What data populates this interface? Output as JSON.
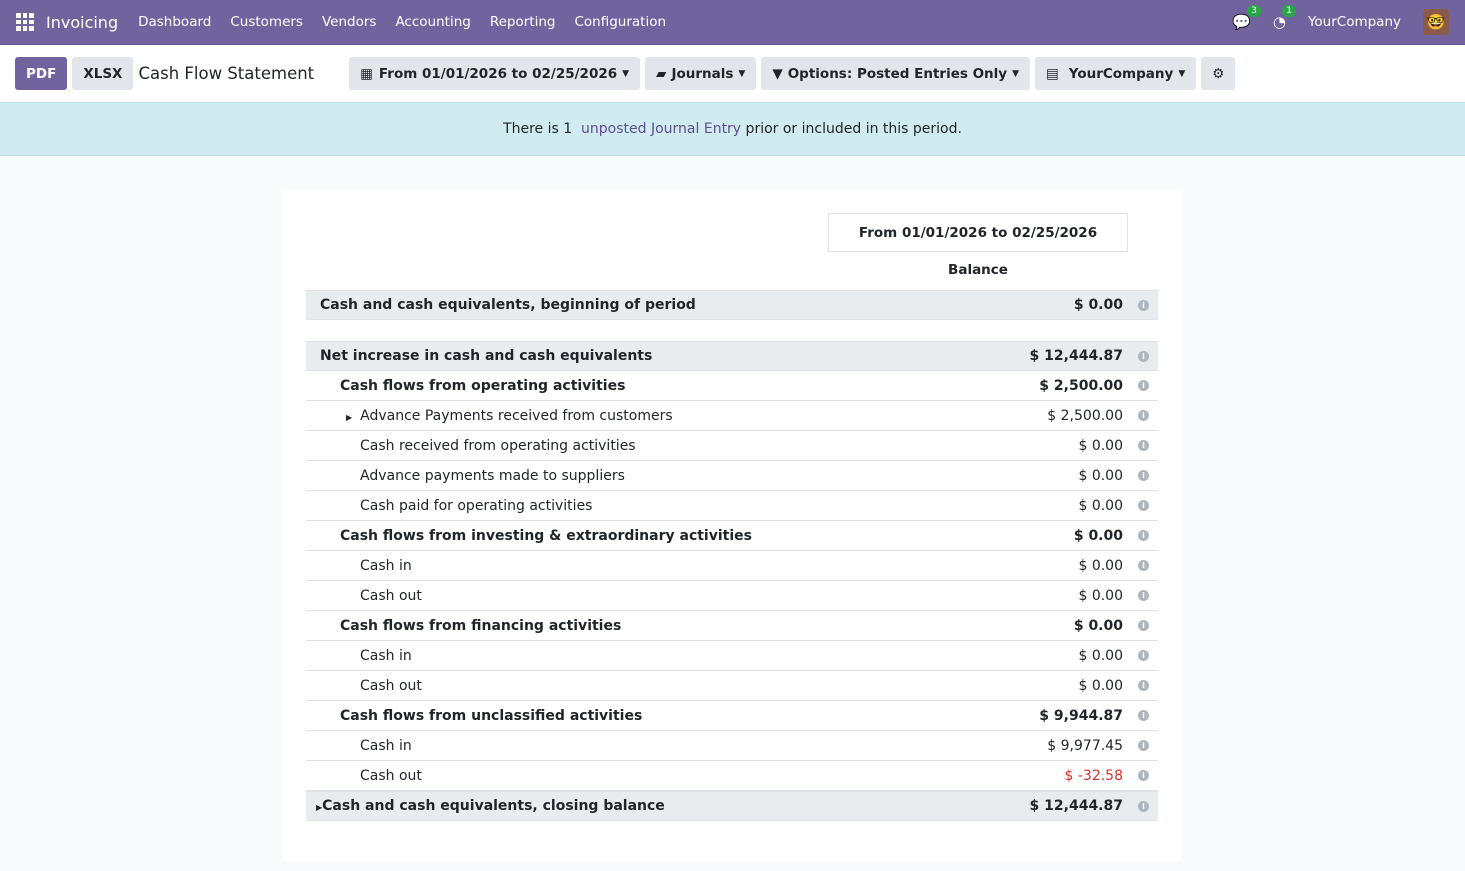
{
  "nav": {
    "app": "Invoicing",
    "menus": [
      "Dashboard",
      "Customers",
      "Vendors",
      "Accounting",
      "Reporting",
      "Configuration"
    ],
    "messages_count": "3",
    "activities_count": "1",
    "company": "YourCompany"
  },
  "toolbar": {
    "pdf": "PDF",
    "xlsx": "XLSX",
    "title": "Cash Flow Statement",
    "date_filter": "From 01/01/2026 to 02/25/2026",
    "journals": "Journals",
    "options": "Options: Posted Entries Only",
    "company": "YourCompany"
  },
  "alert": {
    "prefix": "There is 1 ",
    "link": "unposted Journal Entry",
    "suffix": " prior or included in this period."
  },
  "report": {
    "period": "From 01/01/2026 to 02/25/2026",
    "column": "Balance",
    "rows": [
      {
        "label": "Cash and cash equivalents, beginning of period",
        "value": "$ 0.00",
        "level": 0,
        "style": "g"
      },
      {
        "label": "Net increase in cash and cash equivalents",
        "value": "$ 12,444.87",
        "level": 0,
        "style": "g"
      },
      {
        "label": "Cash flows from operating activities",
        "value": "$ 2,500.00",
        "level": 1,
        "style": "b"
      },
      {
        "label": "Advance Payments received from customers",
        "value": "$ 2,500.00",
        "level": 2,
        "style": "",
        "expand": true
      },
      {
        "label": "Cash received from operating activities",
        "value": "$ 0.00",
        "level": 2,
        "style": ""
      },
      {
        "label": "Advance payments made to suppliers",
        "value": "$ 0.00",
        "level": 2,
        "style": ""
      },
      {
        "label": "Cash paid for operating activities",
        "value": "$ 0.00",
        "level": 2,
        "style": ""
      },
      {
        "label": "Cash flows from investing & extraordinary activities",
        "value": "$ 0.00",
        "level": 1,
        "style": "b"
      },
      {
        "label": "Cash in",
        "value": "$ 0.00",
        "level": 2,
        "style": ""
      },
      {
        "label": "Cash out",
        "value": "$ 0.00",
        "level": 2,
        "style": ""
      },
      {
        "label": "Cash flows from financing activities",
        "value": "$ 0.00",
        "level": 1,
        "style": "b"
      },
      {
        "label": "Cash in",
        "value": "$ 0.00",
        "level": 2,
        "style": ""
      },
      {
        "label": "Cash out",
        "value": "$ 0.00",
        "level": 2,
        "style": ""
      },
      {
        "label": "Cash flows from unclassified activities",
        "value": "$ 9,944.87",
        "level": 1,
        "style": "b"
      },
      {
        "label": "Cash in",
        "value": "$ 9,977.45",
        "level": 2,
        "style": ""
      },
      {
        "label": "Cash out",
        "value": "$ -32.58",
        "level": 2,
        "style": "",
        "negative": true
      },
      {
        "label": "Cash and cash equivalents, closing balance",
        "value": "$ 12,444.87",
        "level": 0,
        "style": "g",
        "expand": true
      }
    ]
  },
  "colors": {
    "brand": "#71639e",
    "alert_bg": "#d0ecf1",
    "negative": "#d9322c"
  }
}
